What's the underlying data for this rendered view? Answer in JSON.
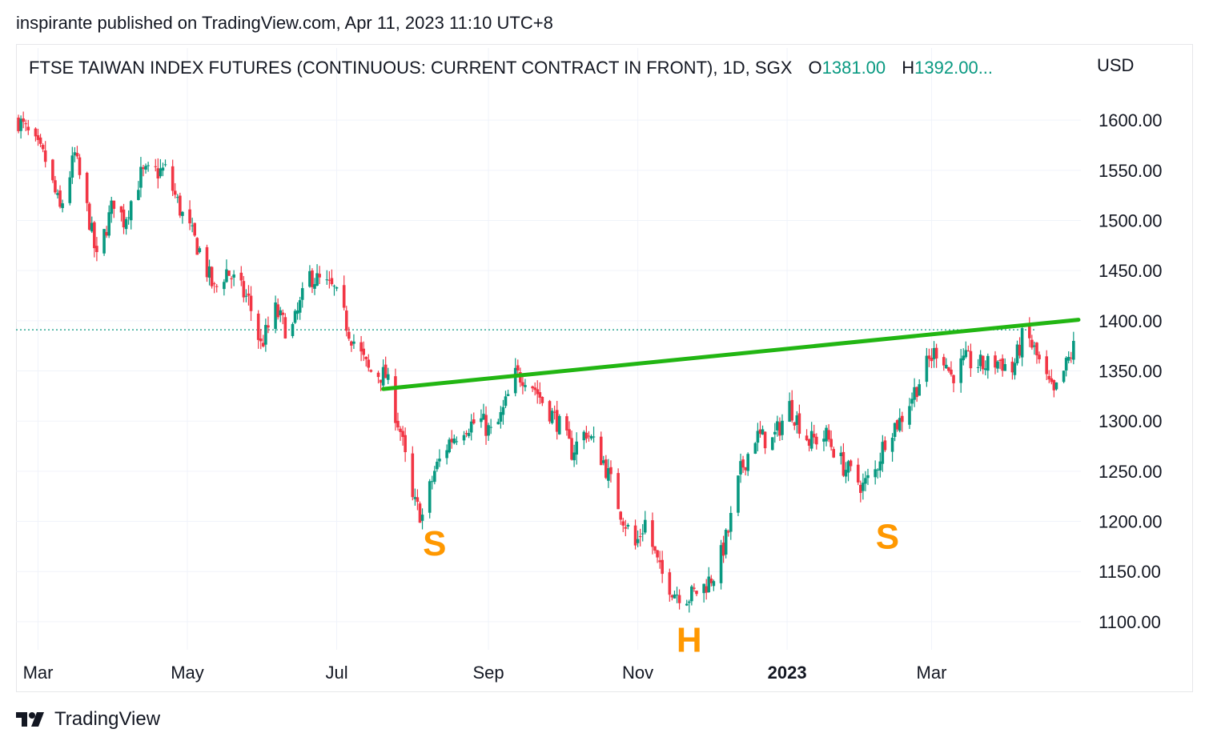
{
  "header": {
    "publish_line": "inspirante published on TradingView.com, Apr 11, 2023 11:10 UTC+8"
  },
  "legend": {
    "symbol": "FTSE TAIWAN INDEX FUTURES (CONTINUOUS: CURRENT CONTRACT IN FRONT), 1D, SGX",
    "open_label": "O",
    "open_value": "1381.00",
    "high_label": "H",
    "high_value": "1392.00..."
  },
  "footer": {
    "brand": "TradingView"
  },
  "colors": {
    "up": "#089981",
    "down": "#f23645",
    "neckline": "#22b613",
    "pattern_label": "#ff9800",
    "last_price": "#089981"
  },
  "chart_data": {
    "type": "candlestick",
    "currency": "USD",
    "y_ticks": [
      "1600.00",
      "1550.00",
      "1500.00",
      "1450.00",
      "1400.00",
      "1350.00",
      "1300.00",
      "1250.00",
      "1200.00",
      "1150.00",
      "1100.00"
    ],
    "ylim": [
      1072,
      1640
    ],
    "x_ticks": [
      {
        "label": "Mar",
        "date": "2022-03-01",
        "bold": false
      },
      {
        "label": "May",
        "date": "2022-05-01",
        "bold": false
      },
      {
        "label": "Jul",
        "date": "2022-07-01",
        "bold": false
      },
      {
        "label": "Sep",
        "date": "2022-09-01",
        "bold": false
      },
      {
        "label": "Nov",
        "date": "2022-11-01",
        "bold": false
      },
      {
        "label": "2023",
        "date": "2023-01-01",
        "bold": true
      },
      {
        "label": "Mar",
        "date": "2023-03-01",
        "bold": false
      }
    ],
    "date_range": [
      "2022-02-20",
      "2023-05-01"
    ],
    "grid": true,
    "last_price": 1391,
    "anchors": [
      {
        "date": "2022-02-21",
        "close": 1600
      },
      {
        "date": "2022-03-04",
        "close": 1560
      },
      {
        "date": "2022-03-10",
        "close": 1510
      },
      {
        "date": "2022-03-16",
        "close": 1565
      },
      {
        "date": "2022-03-22",
        "close": 1500
      },
      {
        "date": "2022-03-25",
        "close": 1460
      },
      {
        "date": "2022-04-01",
        "close": 1520
      },
      {
        "date": "2022-04-05",
        "close": 1500
      },
      {
        "date": "2022-04-12",
        "close": 1545
      },
      {
        "date": "2022-04-22",
        "close": 1550
      },
      {
        "date": "2022-04-29",
        "close": 1505
      },
      {
        "date": "2022-05-06",
        "close": 1470
      },
      {
        "date": "2022-05-12",
        "close": 1430
      },
      {
        "date": "2022-05-17",
        "close": 1450
      },
      {
        "date": "2022-05-26",
        "close": 1420
      },
      {
        "date": "2022-05-31",
        "close": 1375
      },
      {
        "date": "2022-06-06",
        "close": 1410
      },
      {
        "date": "2022-06-12",
        "close": 1385
      },
      {
        "date": "2022-06-20",
        "close": 1445
      },
      {
        "date": "2022-06-30",
        "close": 1430
      },
      {
        "date": "2022-07-06",
        "close": 1390
      },
      {
        "date": "2022-07-14",
        "close": 1350
      },
      {
        "date": "2022-07-21",
        "close": 1345
      },
      {
        "date": "2022-07-27",
        "close": 1290
      },
      {
        "date": "2022-08-01",
        "close": 1220
      },
      {
        "date": "2022-08-05",
        "close": 1205
      },
      {
        "date": "2022-08-10",
        "close": 1250
      },
      {
        "date": "2022-08-16",
        "close": 1280
      },
      {
        "date": "2022-08-22",
        "close": 1295
      },
      {
        "date": "2022-08-29",
        "close": 1300
      },
      {
        "date": "2022-09-03",
        "close": 1285
      },
      {
        "date": "2022-09-07",
        "close": 1310
      },
      {
        "date": "2022-09-12",
        "close": 1345
      },
      {
        "date": "2022-09-17",
        "close": 1345
      },
      {
        "date": "2022-09-23",
        "close": 1320
      },
      {
        "date": "2022-09-29",
        "close": 1300
      },
      {
        "date": "2022-10-05",
        "close": 1270
      },
      {
        "date": "2022-10-11",
        "close": 1290
      },
      {
        "date": "2022-10-18",
        "close": 1260
      },
      {
        "date": "2022-10-25",
        "close": 1210
      },
      {
        "date": "2022-10-31",
        "close": 1175
      },
      {
        "date": "2022-11-04",
        "close": 1200
      },
      {
        "date": "2022-11-10",
        "close": 1150
      },
      {
        "date": "2022-11-16",
        "close": 1130
      },
      {
        "date": "2022-11-22",
        "close": 1125
      },
      {
        "date": "2022-11-28",
        "close": 1135
      },
      {
        "date": "2022-12-03",
        "close": 1150
      },
      {
        "date": "2022-12-08",
        "close": 1190
      },
      {
        "date": "2022-12-13",
        "close": 1250
      },
      {
        "date": "2022-12-19",
        "close": 1285
      },
      {
        "date": "2022-12-26",
        "close": 1280
      },
      {
        "date": "2023-01-02",
        "close": 1315
      },
      {
        "date": "2023-01-10",
        "close": 1280
      },
      {
        "date": "2023-01-17",
        "close": 1285
      },
      {
        "date": "2023-01-24",
        "close": 1255
      },
      {
        "date": "2023-02-01",
        "close": 1235
      },
      {
        "date": "2023-02-06",
        "close": 1250
      },
      {
        "date": "2023-02-11",
        "close": 1290
      },
      {
        "date": "2023-02-16",
        "close": 1300
      },
      {
        "date": "2023-02-22",
        "close": 1330
      },
      {
        "date": "2023-02-28",
        "close": 1360
      },
      {
        "date": "2023-03-04",
        "close": 1375
      },
      {
        "date": "2023-03-09",
        "close": 1345
      },
      {
        "date": "2023-03-15",
        "close": 1360
      },
      {
        "date": "2023-03-22",
        "close": 1355
      },
      {
        "date": "2023-03-29",
        "close": 1360
      },
      {
        "date": "2023-04-03",
        "close": 1350
      },
      {
        "date": "2023-04-08",
        "close": 1390
      },
      {
        "date": "2023-04-12",
        "close": 1370
      },
      {
        "date": "2023-04-17",
        "close": 1340
      },
      {
        "date": "2023-04-20",
        "close": 1325
      },
      {
        "date": "2023-04-25",
        "close": 1355
      },
      {
        "date": "2023-04-30",
        "close": 1385
      }
    ],
    "neckline": {
      "start": {
        "date": "2022-07-20",
        "price": 1332
      },
      "end": {
        "date": "2023-04-30",
        "price": 1401
      }
    },
    "annotations": [
      {
        "text": "S",
        "date": "2022-08-10",
        "price": 1166
      },
      {
        "text": "H",
        "date": "2022-11-22",
        "price": 1070
      },
      {
        "text": "S",
        "date": "2023-02-11",
        "price": 1173
      }
    ]
  }
}
